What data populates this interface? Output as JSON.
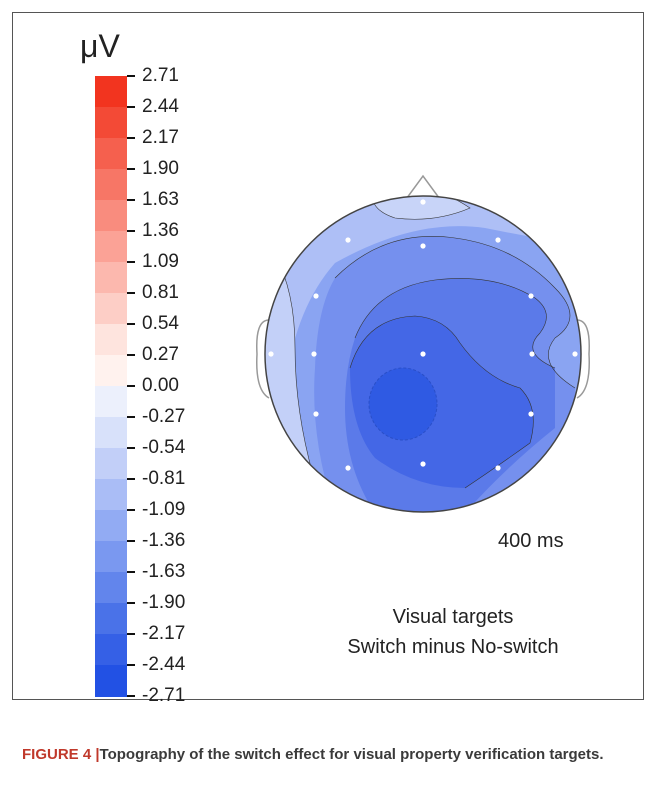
{
  "figure": {
    "unit": "μV",
    "time": "400 ms",
    "condition_line1": "Visual targets",
    "condition_line2": "Switch minus No-switch",
    "caption_number": "FIGURE 4 |",
    "caption_text": "Topography of the switch effect for visual property verification targets."
  },
  "colorbar": {
    "labels": [
      "2.71",
      "2.44",
      "2.17",
      "1.90",
      "1.63",
      "1.36",
      "1.09",
      "0.81",
      "0.54",
      "0.27",
      "0.00",
      "-0.27",
      "-0.54",
      "-0.81",
      "-1.09",
      "-1.36",
      "-1.63",
      "-1.90",
      "-2.17",
      "-2.44",
      "-2.71"
    ],
    "colors": [
      "#f2341f",
      "#f34a36",
      "#f5604e",
      "#f77666",
      "#f98c7e",
      "#fba296",
      "#fcb8ae",
      "#fdcec6",
      "#fee4de",
      "#fff2ee",
      "#ecf0fc",
      "#d8e1fa",
      "#c2cff8",
      "#aabdf6",
      "#92abf3",
      "#7a98f0",
      "#6285ec",
      "#4a72e8",
      "#3560e6",
      "#2251e4"
    ]
  },
  "topography": {
    "electrodes": 15
  }
}
